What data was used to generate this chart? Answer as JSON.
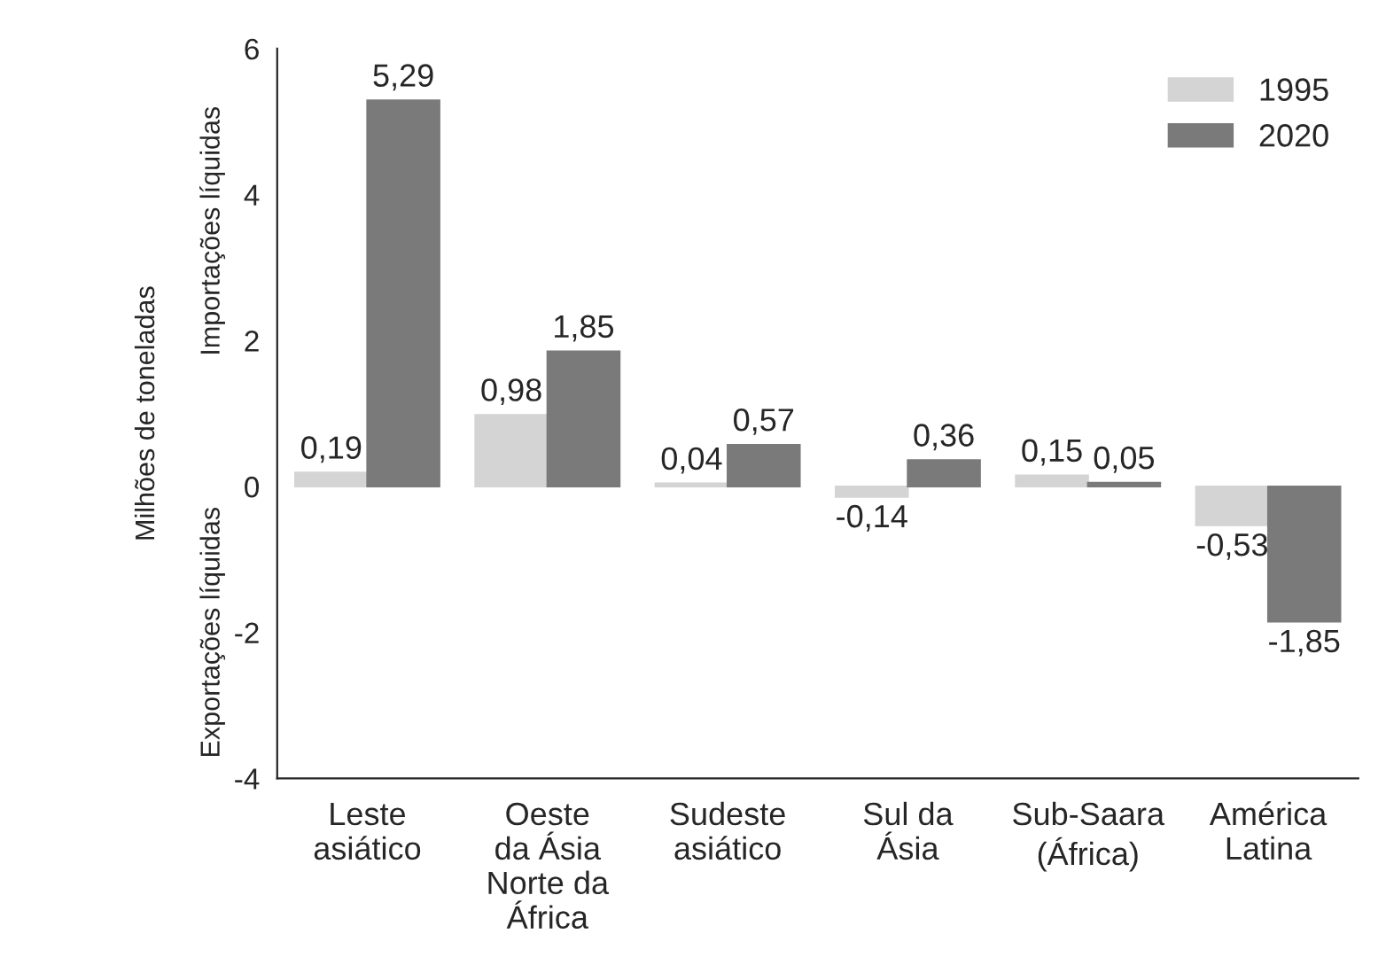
{
  "chart_data": {
    "type": "bar",
    "ylabel": "Milhões de toneladas",
    "annotations": [
      "Importações líquidas",
      "Exportações líquidas"
    ],
    "categories": [
      "Leste\nasiático",
      "Oeste\nda Ásia\nNorte da\nÁfrica",
      "Sudeste\nasiático",
      "Sul da\nÁsia",
      "Sub-Saara\n(África)",
      "América\nLatina"
    ],
    "series": [
      {
        "name": "1995",
        "color": "#d4d4d4",
        "values": [
          0.19,
          0.98,
          0.04,
          -0.14,
          0.15,
          -0.53
        ]
      },
      {
        "name": "2020",
        "color": "#7a7a7a",
        "values": [
          5.29,
          1.85,
          0.57,
          0.36,
          0.05,
          -1.85
        ]
      }
    ],
    "value_labels": [
      [
        "0,19",
        "0,98",
        "0,04",
        "-0,14",
        "0,15",
        "-0,53"
      ],
      [
        "5,29",
        "1,85",
        "0,57",
        "0,36",
        "0,05",
        "-1,85"
      ]
    ],
    "ylim": [
      -4,
      6
    ],
    "yticks": [
      -4,
      -2,
      0,
      2,
      4,
      6
    ],
    "grid": false,
    "legend": "top right"
  }
}
